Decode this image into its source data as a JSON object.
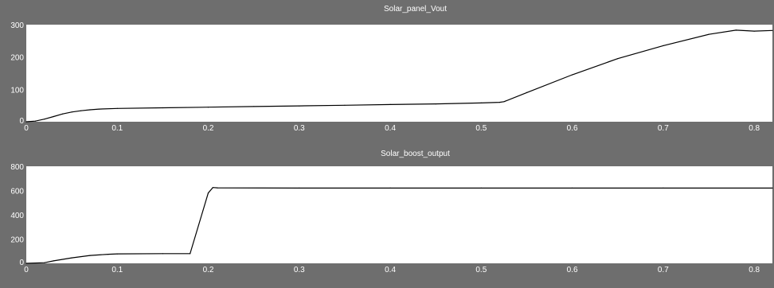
{
  "chart_data": [
    {
      "type": "line",
      "title": "Solar_panel_Vout",
      "xlim": [
        0,
        0.82
      ],
      "ylim": [
        0,
        300
      ],
      "xticks": [
        "0",
        "0.1",
        "0.2",
        "0.3",
        "0.4",
        "0.5",
        "0.6",
        "0.7",
        "0.8"
      ],
      "yticks": [
        "0",
        "100",
        "200",
        "300"
      ],
      "grid": false,
      "series": [
        {
          "x": [
            0,
            0.01,
            0.02,
            0.03,
            0.04,
            0.05,
            0.06,
            0.07,
            0.08,
            0.1,
            0.15,
            0.2,
            0.25,
            0.3,
            0.35,
            0.4,
            0.45,
            0.5,
            0.52,
            0.525,
            0.55,
            0.6,
            0.65,
            0.7,
            0.75,
            0.78,
            0.8,
            0.82
          ],
          "y": [
            0,
            2,
            8,
            16,
            24,
            30,
            34,
            37,
            39,
            41,
            43,
            45,
            47,
            49,
            51,
            53,
            55,
            58,
            60,
            62,
            90,
            145,
            195,
            235,
            270,
            283,
            280,
            282
          ]
        }
      ]
    },
    {
      "type": "line",
      "title": "Solar_boost_output",
      "xlim": [
        0,
        0.82
      ],
      "ylim": [
        0,
        800
      ],
      "xticks": [
        "0",
        "0.1",
        "0.2",
        "0.3",
        "0.4",
        "0.5",
        "0.6",
        "0.7",
        "0.8"
      ],
      "yticks": [
        "0",
        "200",
        "400",
        "600",
        "800"
      ],
      "grid": false,
      "series": [
        {
          "x": [
            0,
            0.02,
            0.03,
            0.05,
            0.07,
            0.09,
            0.1,
            0.15,
            0.18,
            0.2,
            0.205,
            0.21,
            0.3,
            0.4,
            0.5,
            0.6,
            0.7,
            0.82
          ],
          "y": [
            0,
            5,
            20,
            45,
            65,
            75,
            78,
            80,
            80,
            580,
            625,
            622,
            620,
            620,
            620,
            620,
            620,
            620
          ]
        }
      ]
    }
  ]
}
